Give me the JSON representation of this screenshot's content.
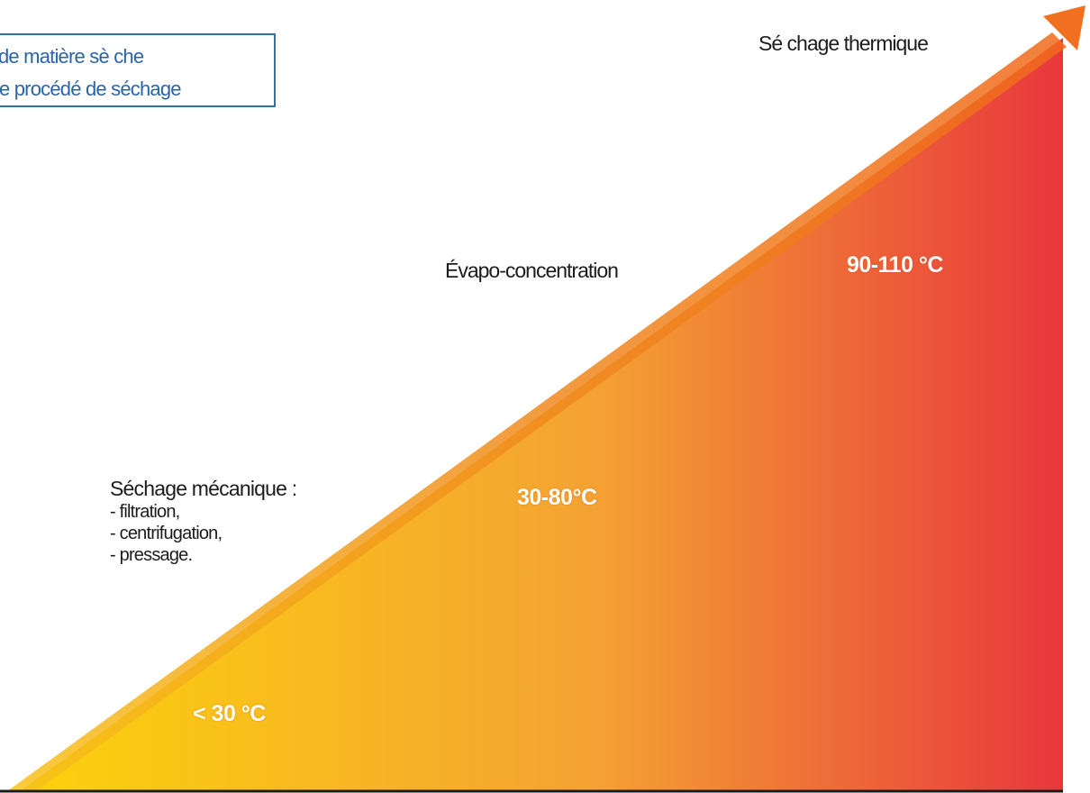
{
  "legend": {
    "line1": "de matière sè che",
    "line2": "e procédé de séchage",
    "border_color": "#2f6fb5",
    "text_color": "#2a64a8"
  },
  "stages": {
    "thermal": {
      "label": "Sé chage thermique",
      "temperature": "90-110 °C"
    },
    "evaporation": {
      "label": "Évapo-concentration",
      "temperature": "30-80°C"
    },
    "mechanical": {
      "label": "Séchage mécanique :",
      "methods": [
        "- filtration,",
        "- centrifugation,",
        "- pressage."
      ],
      "temperature": "< 30 °C"
    }
  },
  "gradient_colors": {
    "start": "#fcd20c",
    "middle": "#f4a233",
    "end": "#e8373c"
  },
  "arrow_color": "#f07020"
}
